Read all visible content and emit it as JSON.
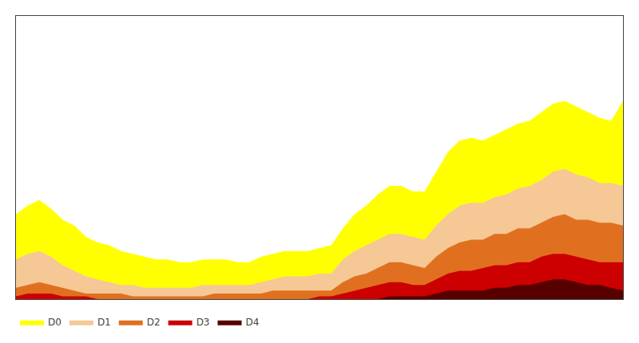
{
  "chart_data": {
    "type": "area",
    "stacked": false,
    "x": [
      0,
      1,
      2,
      3,
      4,
      5,
      6,
      7,
      8,
      9,
      10,
      11,
      12,
      13,
      14,
      15,
      16,
      17,
      18,
      19,
      20,
      21,
      22,
      23,
      24,
      25,
      26,
      27,
      28,
      29,
      30,
      31,
      32,
      33,
      34,
      35,
      36,
      37,
      38,
      39,
      40,
      41,
      42,
      43,
      44,
      45,
      46,
      47,
      48,
      49,
      50,
      51,
      52
    ],
    "xlim": [
      0,
      52
    ],
    "xticks": [],
    "ylim": [
      0,
      100
    ],
    "yticks": [],
    "tick_labels": false,
    "grid": false,
    "legend": "bottom",
    "series": [
      {
        "name": "D0",
        "color": "#ffff00",
        "values": [
          30,
          33,
          35,
          32,
          28,
          26,
          22,
          20,
          19,
          17,
          16,
          15,
          14,
          14,
          13,
          13,
          14,
          14,
          14,
          13,
          13,
          15,
          16,
          17,
          17,
          17,
          18,
          19,
          25,
          30,
          33,
          37,
          40,
          40,
          38,
          38,
          45,
          52,
          56,
          57,
          56,
          58,
          60,
          62,
          63,
          66,
          69,
          70,
          68,
          66,
          64,
          63,
          70
        ]
      },
      {
        "name": "D1",
        "color": "#f5c896",
        "values": [
          14,
          16,
          17,
          15,
          12,
          10,
          8,
          7,
          6,
          5,
          5,
          4,
          4,
          4,
          4,
          4,
          5,
          5,
          5,
          5,
          5,
          6,
          7,
          8,
          8,
          8,
          9,
          9,
          14,
          17,
          19,
          21,
          23,
          23,
          22,
          21,
          26,
          30,
          33,
          34,
          34,
          36,
          37,
          39,
          40,
          42,
          45,
          46,
          44,
          43,
          41,
          41,
          40
        ]
      },
      {
        "name": "D2",
        "color": "#e07020",
        "values": [
          4,
          5,
          6,
          5,
          4,
          3,
          2,
          2,
          2,
          2,
          1,
          1,
          1,
          1,
          1,
          1,
          1,
          2,
          2,
          2,
          2,
          2,
          3,
          3,
          3,
          3,
          3,
          3,
          6,
          8,
          9,
          11,
          13,
          13,
          12,
          11,
          15,
          18,
          20,
          21,
          21,
          23,
          23,
          25,
          25,
          27,
          29,
          30,
          28,
          28,
          27,
          27,
          26
        ]
      },
      {
        "name": "D3",
        "color": "#cc0000",
        "values": [
          1,
          2,
          2,
          2,
          1,
          1,
          1,
          0,
          0,
          0,
          0,
          0,
          0,
          0,
          0,
          0,
          0,
          0,
          0,
          0,
          0,
          0,
          0,
          0,
          0,
          0,
          1,
          1,
          2,
          3,
          4,
          5,
          6,
          6,
          5,
          5,
          7,
          9,
          10,
          10,
          11,
          12,
          12,
          13,
          13,
          15,
          16,
          16,
          15,
          14,
          13,
          13,
          13
        ]
      },
      {
        "name": "D4",
        "color": "#580000",
        "values": [
          0,
          0,
          0,
          0,
          0,
          0,
          0,
          0,
          0,
          0,
          0,
          0,
          0,
          0,
          0,
          0,
          0,
          0,
          0,
          0,
          0,
          0,
          0,
          0,
          0,
          0,
          0,
          0,
          0,
          0,
          0,
          0,
          1,
          1,
          1,
          1,
          2,
          3,
          3,
          3,
          3,
          4,
          4,
          5,
          5,
          6,
          7,
          7,
          6,
          5,
          5,
          4,
          3
        ]
      }
    ]
  }
}
